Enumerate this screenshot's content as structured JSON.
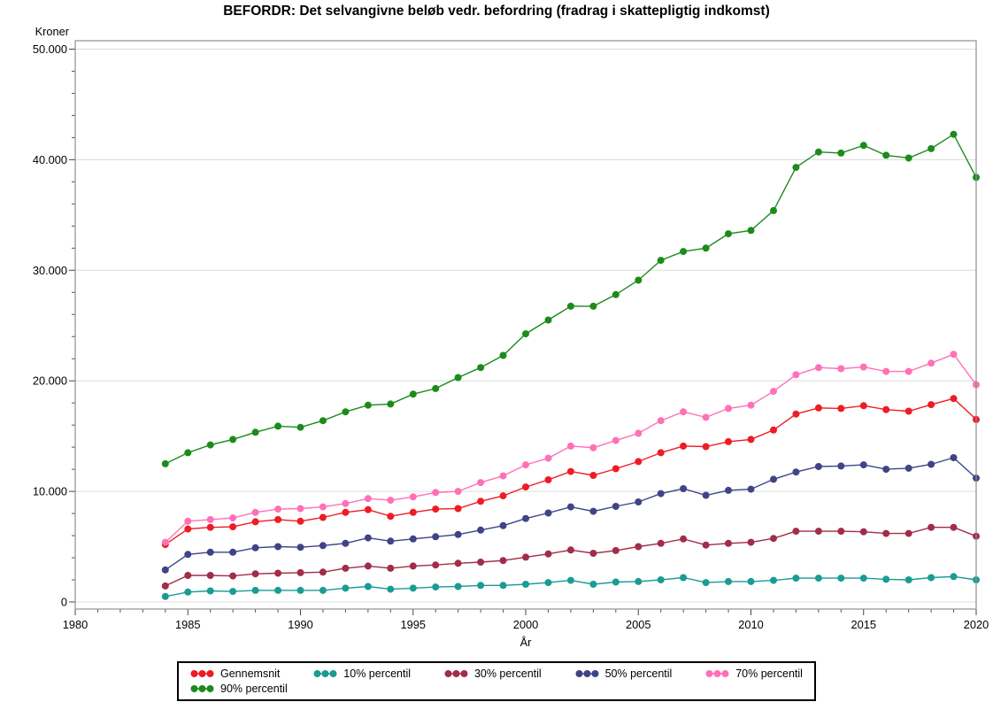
{
  "title": "BEFORDR: Det selvangivne beløb vedr. befordring (fradrag i skattepligtig indkomst)",
  "chart_data": {
    "type": "line",
    "title": "BEFORDR: Det selvangivne beløb vedr. befordring (fradrag i skattepligtig indkomst)",
    "xlabel": "År",
    "ylabel": "Kroner",
    "xlim": [
      1980,
      2020
    ],
    "ylim": [
      0,
      50000
    ],
    "grid": "horizontal-major",
    "legend_position": "bottom",
    "x_tick_labels": [
      "1980",
      "1985",
      "1990",
      "1995",
      "2000",
      "2005",
      "2010",
      "2015",
      "2020"
    ],
    "y_tick_labels": [
      "0",
      "10.000",
      "20.000",
      "30.000",
      "40.000",
      "50.000"
    ],
    "x": [
      1984,
      1985,
      1986,
      1987,
      1988,
      1989,
      1990,
      1991,
      1992,
      1993,
      1994,
      1995,
      1996,
      1997,
      1998,
      1999,
      2000,
      2001,
      2002,
      2003,
      2004,
      2005,
      2006,
      2007,
      2008,
      2009,
      2010,
      2011,
      2012,
      2013,
      2014,
      2015,
      2016,
      2017,
      2018,
      2019,
      2020
    ],
    "series": [
      {
        "name": "Gennemsnit",
        "color": "#ee1c25",
        "values": [
          5200,
          6600,
          6750,
          6800,
          7250,
          7450,
          7300,
          7650,
          8100,
          8350,
          7750,
          8100,
          8400,
          8450,
          9100,
          9600,
          10400,
          11050,
          11800,
          11450,
          12050,
          12700,
          13500,
          14100,
          14050,
          14500,
          14700,
          15550,
          17000,
          17550,
          17500,
          17750,
          17400,
          17250,
          17850,
          18400,
          16500
        ]
      },
      {
        "name": "10% percentil",
        "color": "#1a9b95",
        "values": [
          500,
          900,
          1000,
          950,
          1050,
          1050,
          1050,
          1050,
          1250,
          1400,
          1150,
          1250,
          1350,
          1400,
          1500,
          1500,
          1600,
          1750,
          1950,
          1600,
          1800,
          1850,
          2000,
          2200,
          1750,
          1850,
          1850,
          1950,
          2150,
          2150,
          2150,
          2150,
          2050,
          2000,
          2200,
          2300,
          2000
        ]
      },
      {
        "name": "30% percentil",
        "color": "#a02d49",
        "values": [
          1450,
          2400,
          2400,
          2350,
          2550,
          2600,
          2650,
          2700,
          3050,
          3250,
          3050,
          3250,
          3350,
          3500,
          3600,
          3750,
          4050,
          4350,
          4700,
          4400,
          4650,
          5000,
          5300,
          5700,
          5150,
          5300,
          5400,
          5750,
          6400,
          6400,
          6400,
          6350,
          6200,
          6200,
          6750,
          6750,
          5950
        ]
      },
      {
        "name": "50% percentil",
        "color": "#3e4487",
        "values": [
          2900,
          4300,
          4500,
          4500,
          4900,
          5000,
          4950,
          5100,
          5300,
          5800,
          5500,
          5700,
          5900,
          6100,
          6500,
          6900,
          7550,
          8050,
          8600,
          8200,
          8650,
          9050,
          9800,
          10250,
          9650,
          10100,
          10200,
          11100,
          11750,
          12250,
          12300,
          12400,
          12000,
          12100,
          12450,
          13050,
          11200
        ]
      },
      {
        "name": "70% percentil",
        "color": "#ff70b8",
        "values": [
          5400,
          7300,
          7450,
          7600,
          8100,
          8400,
          8450,
          8600,
          8900,
          9350,
          9200,
          9500,
          9900,
          10000,
          10800,
          11400,
          12400,
          13000,
          14100,
          13950,
          14600,
          15250,
          16400,
          17200,
          16700,
          17500,
          17800,
          19050,
          20550,
          21200,
          21100,
          21250,
          20850,
          20850,
          21600,
          22400,
          19650
        ]
      },
      {
        "name": "90% percentil",
        "color": "#1c8b1c",
        "values": [
          12500,
          13500,
          14200,
          14700,
          15350,
          15900,
          15800,
          16400,
          17200,
          17800,
          17900,
          18800,
          19300,
          20300,
          21200,
          22300,
          24250,
          25500,
          26750,
          26750,
          27800,
          29100,
          30900,
          31700,
          32000,
          33300,
          33600,
          35400,
          39300,
          40700,
          40600,
          41300,
          40400,
          40150,
          41000,
          42300,
          38400
        ]
      }
    ]
  }
}
